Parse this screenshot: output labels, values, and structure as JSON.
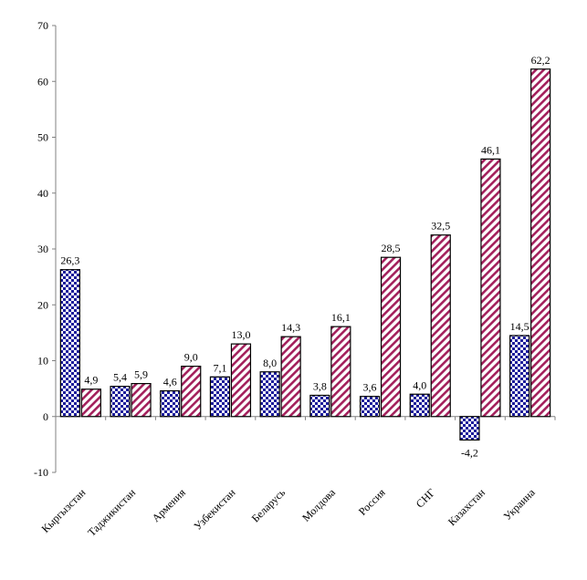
{
  "chart_data": {
    "type": "bar",
    "title": "",
    "xlabel": "",
    "ylabel": "",
    "ylim": [
      -10,
      70
    ],
    "yticks": [
      -10,
      0,
      10,
      20,
      30,
      40,
      50,
      60,
      70
    ],
    "ytick_labels": [
      "-10",
      "0",
      "10",
      "20",
      "30",
      "40",
      "50",
      "60",
      "70"
    ],
    "grid": false,
    "legend": "none",
    "categories": [
      "Кыргызстан",
      "Таджикистан",
      "Армения",
      "Узбекистан",
      "Беларусь",
      "Молдова",
      "Россия",
      "СНГ",
      "Казахстан",
      "Украина"
    ],
    "series": [
      {
        "pattern": "checkered",
        "color": "#1c1c9a",
        "values": [
          26.3,
          5.4,
          4.6,
          7.1,
          8.0,
          3.8,
          3.6,
          4.0,
          -4.2,
          14.5
        ],
        "labels": [
          "26,3",
          "5,4",
          "4,6",
          "7,1",
          "8,0",
          "3,8",
          "3,6",
          "4,0",
          "-4,2",
          "14,5"
        ]
      },
      {
        "pattern": "diagonal-stripes",
        "color": "#a3205c",
        "values": [
          4.9,
          5.9,
          9.0,
          13.0,
          14.3,
          16.1,
          28.5,
          32.5,
          46.1,
          62.2
        ],
        "labels": [
          "4,9",
          "5,9",
          "9,0",
          "13,0",
          "14,3",
          "16,1",
          "28,5",
          "32,5",
          "46,1",
          "62,2"
        ]
      }
    ]
  }
}
